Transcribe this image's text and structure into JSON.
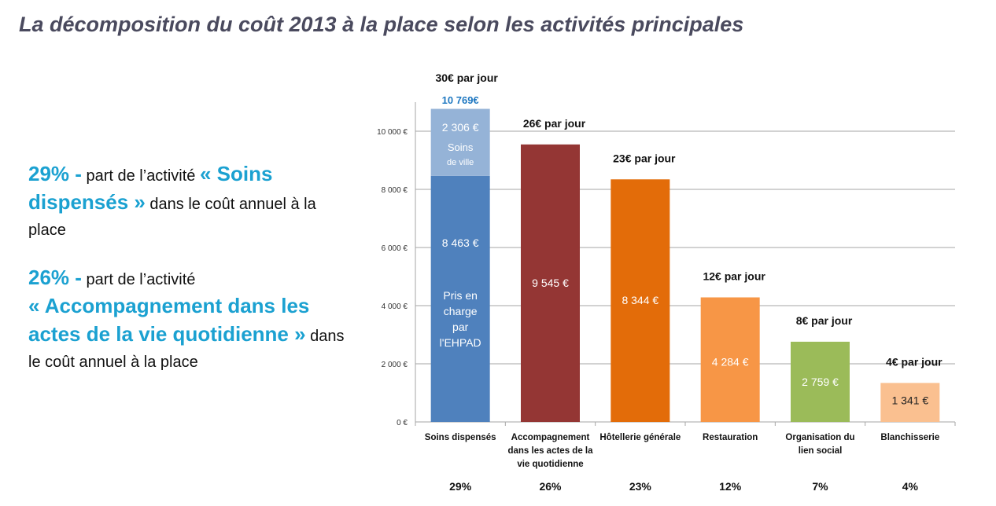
{
  "title": "La décomposition du coût 2013 à la place selon les activités principales",
  "left_text": {
    "p1": {
      "pct": "29% -",
      "t1": " part de l’activité ",
      "hl": "« Soins dispensés »",
      "t2": " dans le coût annuel à la place"
    },
    "p2": {
      "pct": "26% -",
      "t1": " part de l’activité ",
      "hl": "« Accompagnement dans les actes de la vie quotidienne »",
      "t2": " dans le coût annuel à la place"
    }
  },
  "chart_data": {
    "type": "bar",
    "title": "",
    "xlabel": "",
    "ylabel": "",
    "ylim": [
      0,
      10000
    ],
    "yticks": [
      0,
      2000,
      4000,
      6000,
      8000,
      10000
    ],
    "ytick_labels": [
      "0 €",
      "2 000 €",
      "4 000 €",
      "6 000 €",
      "8 000 €",
      "10 000 €"
    ],
    "grid": true,
    "categories": [
      [
        "Soins dispensés"
      ],
      [
        "Accompagnement",
        "dans les actes de la",
        "vie quotidienne"
      ],
      [
        "Hôtellerie générale"
      ],
      [
        "Restauration"
      ],
      [
        "Organisation du",
        "lien social"
      ],
      [
        "Blanchisserie"
      ]
    ],
    "values": [
      10769,
      9545,
      8344,
      4284,
      2759,
      1341
    ],
    "value_labels": [
      "10 769€",
      "9 545 €",
      "8 344 €",
      "4 284 €",
      "2 759 €",
      "1 341 €"
    ],
    "per_day_labels": [
      "30€ par jour",
      "26€ par jour",
      "23€ par jour",
      "12€ par jour",
      "8€ par jour",
      "4€ par jour"
    ],
    "shares": [
      "29%",
      "26%",
      "23%",
      "12%",
      "7%",
      "4%"
    ],
    "colors": [
      "#4f81bd",
      "#943634",
      "#e36c09",
      "#f79646",
      "#9bbb59",
      "#fac090"
    ],
    "stack_first": {
      "segments": [
        {
          "name": "Pris en charge par l'EHPAD",
          "value": 8463,
          "label": "8 463 €",
          "text": [
            "Pris en",
            "charge",
            "par",
            "l'EHPAD"
          ],
          "color": "#4f81bd"
        },
        {
          "name": "Soins de ville",
          "value": 2306,
          "label": "2 306 €",
          "text": [
            "Soins",
            "de ville"
          ],
          "color": "#95b3d7"
        }
      ],
      "total_color": "#1f78c1"
    }
  }
}
